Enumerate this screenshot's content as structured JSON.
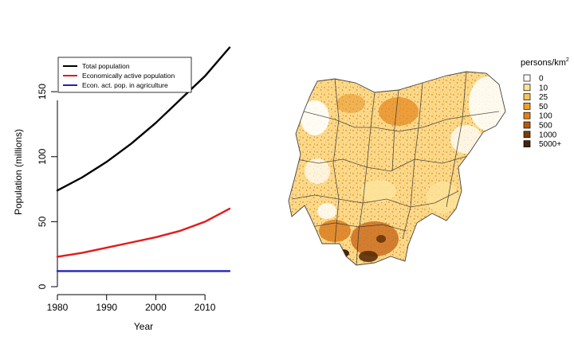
{
  "chart_data": [
    {
      "type": "line",
      "title": "",
      "xlabel": "Year",
      "ylabel": "Population (millions)",
      "xlim": [
        1980,
        2015
      ],
      "ylim": [
        0,
        185
      ],
      "x_ticks": [
        "1980",
        "1990",
        "2000",
        "2010"
      ],
      "x_tick_values": [
        1980,
        1990,
        2000,
        2010
      ],
      "y_ticks": [
        "0",
        "50",
        "100",
        "150"
      ],
      "y_tick_values": [
        0,
        50,
        100,
        150
      ],
      "legend_position": "top-left",
      "x": [
        1980,
        1985,
        1990,
        1995,
        2000,
        2005,
        2010,
        2015
      ],
      "series": [
        {
          "name": "Total population",
          "color": "#000000",
          "values": [
            74,
            84,
            96,
            110,
            126,
            144,
            162,
            184
          ]
        },
        {
          "name": "Economically active population",
          "color": "#e31a1c",
          "values": [
            23,
            26,
            30,
            34,
            38,
            43,
            50,
            60
          ]
        },
        {
          "name": "Econ. act. pop. in agriculture",
          "color": "#2323b8",
          "values": [
            12,
            12,
            12,
            12,
            12,
            12,
            12,
            12
          ]
        }
      ]
    },
    {
      "type": "choropleth-map",
      "title": "",
      "region": "Nigeria",
      "legend_title": "persons/km",
      "legend_title_superscript": "2",
      "legend_position": "top-right",
      "legend": [
        {
          "label": "0",
          "color": "#ffffff"
        },
        {
          "label": "10",
          "color": "#fde39a"
        },
        {
          "label": "25",
          "color": "#f8c45a"
        },
        {
          "label": "50",
          "color": "#f29d32"
        },
        {
          "label": "100",
          "color": "#e57f1a"
        },
        {
          "label": "500",
          "color": "#b35a0d"
        },
        {
          "label": "1000",
          "color": "#7c3d08"
        },
        {
          "label": "5000+",
          "color": "#4a2204"
        }
      ]
    }
  ]
}
